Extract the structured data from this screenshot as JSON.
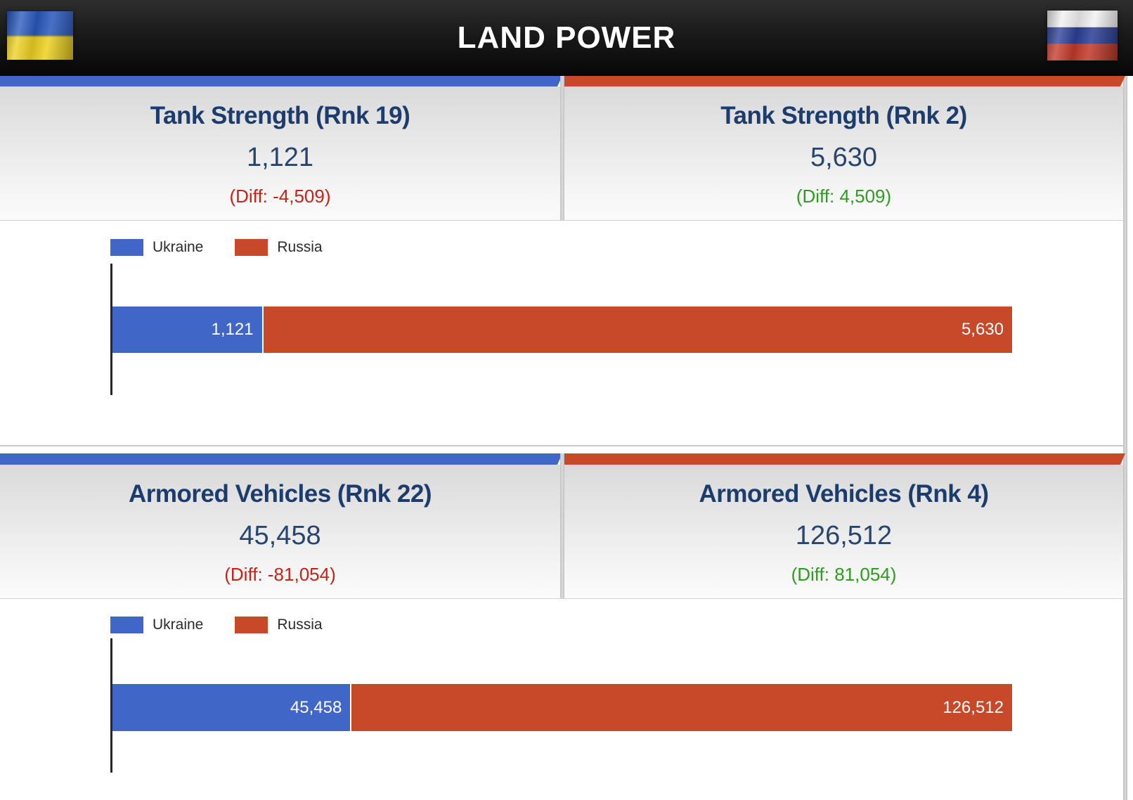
{
  "header": {
    "title": "LAND POWER",
    "left_flag": "ukraine-flag",
    "right_flag": "russia-flag"
  },
  "colors": {
    "ukraine_blue": "#4066c7",
    "russia_red": "#c7492a",
    "title_navy": "#1c3c6d",
    "value_navy": "#27456f",
    "diff_negative": "#c52318",
    "diff_positive": "#2e9c1f"
  },
  "sections": [
    {
      "ukraine": {
        "title": "Tank Strength (Rnk 19)",
        "value": "1,121",
        "diff": "(Diff: -4,509)"
      },
      "russia": {
        "title": "Tank Strength (Rnk 2)",
        "value": "5,630",
        "diff": "(Diff: 4,509)"
      }
    },
    {
      "ukraine": {
        "title": "Armored Vehicles (Rnk 22)",
        "value": "45,458",
        "diff": "(Diff: -81,054)"
      },
      "russia": {
        "title": "Armored Vehicles (Rnk 4)",
        "value": "126,512",
        "diff": "(Diff: 81,054)"
      }
    }
  ],
  "chart_data": [
    {
      "type": "bar",
      "orientation": "horizontal-stacked",
      "title": "Tank Strength",
      "legend_position": "top",
      "series": [
        {
          "name": "Ukraine",
          "value": 1121,
          "label": "1,121",
          "color": "#4066c7"
        },
        {
          "name": "Russia",
          "value": 5630,
          "label": "5,630",
          "color": "#c7492a"
        }
      ]
    },
    {
      "type": "bar",
      "orientation": "horizontal-stacked",
      "title": "Armored Vehicles",
      "legend_position": "top",
      "series": [
        {
          "name": "Ukraine",
          "value": 45458,
          "label": "45,458",
          "color": "#4066c7"
        },
        {
          "name": "Russia",
          "value": 126512,
          "label": "126,512",
          "color": "#c7492a"
        }
      ]
    }
  ]
}
